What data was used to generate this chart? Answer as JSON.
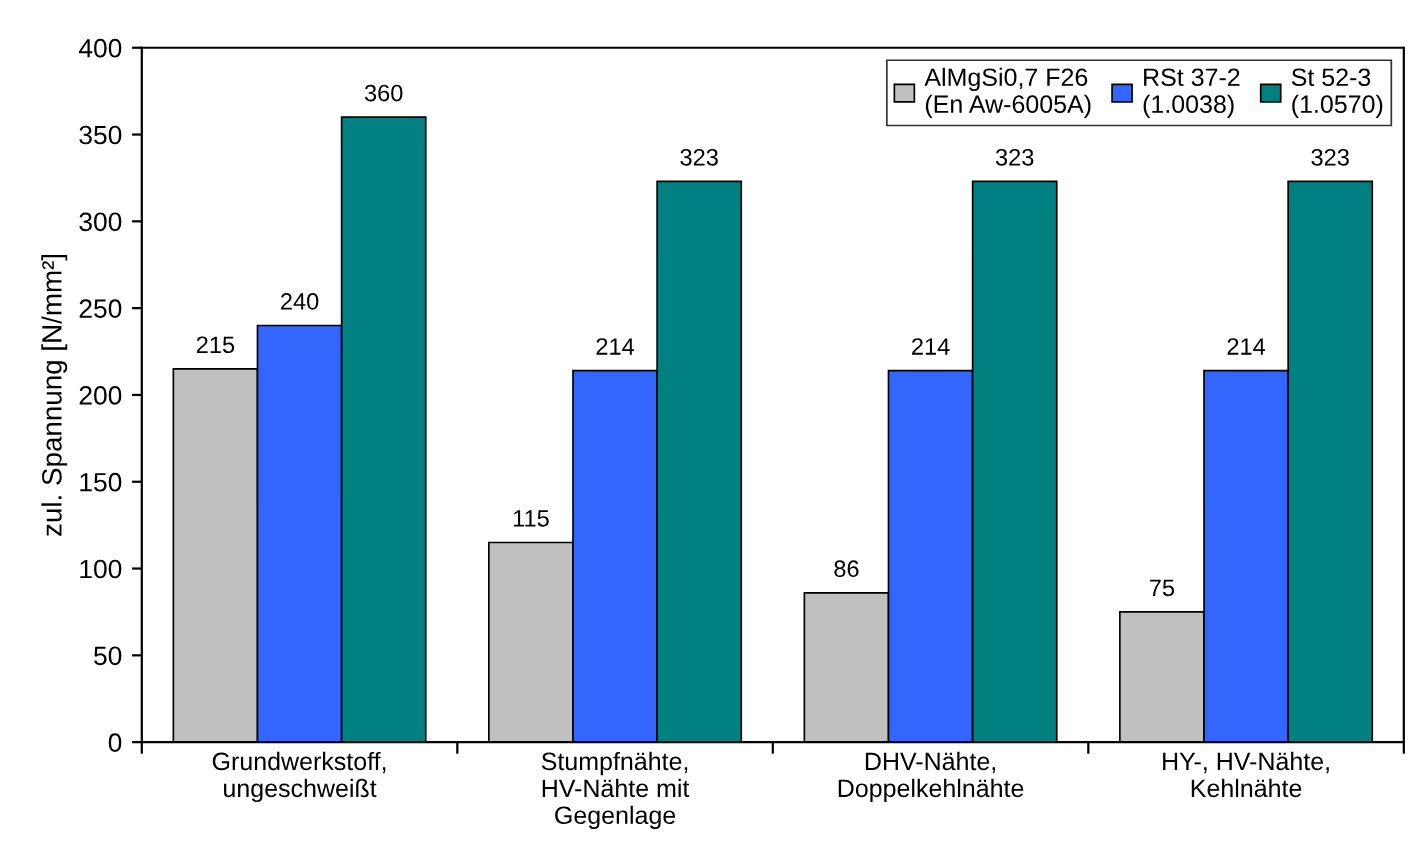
{
  "chart_data": {
    "type": "bar",
    "ylabel": "zul. Spannung [N/mm²]",
    "categories": [
      "Grundwerkstoff,\nungeschweißt",
      "Stumpfnähte,\nHV-Nähte mit\nGegenlage",
      "DHV-Nähte,\nDoppelkehlnähte",
      "HY-, HV-Nähte,\nKehlnähte"
    ],
    "series": [
      {
        "name": "AlMgSi0,7 F26\n(En Aw-6005A)",
        "color": "#c0c0c0",
        "values": [
          215,
          115,
          86,
          75
        ]
      },
      {
        "name": "RSt 37-2\n(1.0038)",
        "color": "#3366ff",
        "values": [
          240,
          214,
          214,
          214
        ]
      },
      {
        "name": "St 52-3\n(1.0570)",
        "color": "#008080",
        "values": [
          360,
          323,
          323,
          323
        ]
      }
    ],
    "ylim": [
      0,
      400
    ],
    "yticks": [
      0,
      50,
      100,
      150,
      200,
      250,
      300,
      350,
      400
    ],
    "data_labels": true,
    "grid": false,
    "legend": "top right"
  }
}
